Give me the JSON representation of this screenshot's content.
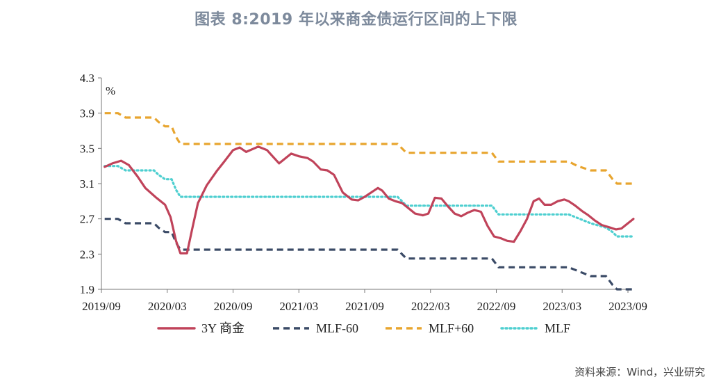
{
  "title": "图表 8:2019 年以来商金债运行区间的上下限",
  "source": "资料来源：Wind，兴业研究",
  "chart_data": {
    "type": "line",
    "unit_label": "%",
    "ylim": [
      1.9,
      4.3
    ],
    "yticks": [
      "4.3",
      "3.9",
      "3.5",
      "3.1",
      "2.7",
      "2.3",
      "1.9"
    ],
    "xlim": [
      0,
      48
    ],
    "xticks": [
      {
        "label": "2019/09",
        "pos": 0
      },
      {
        "label": "2020/03",
        "pos": 6
      },
      {
        "label": "2020/09",
        "pos": 12
      },
      {
        "label": "2021/03",
        "pos": 18
      },
      {
        "label": "2021/09",
        "pos": 24
      },
      {
        "label": "2022/03",
        "pos": 30
      },
      {
        "label": "2022/09",
        "pos": 36
      },
      {
        "label": "2023/03",
        "pos": 42
      },
      {
        "label": "2023/09",
        "pos": 48
      }
    ],
    "legend_position": "bottom",
    "series": [
      {
        "name": "3Y 商金",
        "color": "#c0435a",
        "style": "solid",
        "points": [
          [
            0.3,
            3.29
          ],
          [
            1,
            3.33
          ],
          [
            1.8,
            3.36
          ],
          [
            2.5,
            3.31
          ],
          [
            3.3,
            3.18
          ],
          [
            4,
            3.05
          ],
          [
            5,
            2.94
          ],
          [
            5.8,
            2.86
          ],
          [
            6.3,
            2.72
          ],
          [
            6.8,
            2.45
          ],
          [
            7.2,
            2.31
          ],
          [
            7.8,
            2.31
          ],
          [
            8.3,
            2.6
          ],
          [
            8.8,
            2.88
          ],
          [
            9.6,
            3.08
          ],
          [
            10.5,
            3.24
          ],
          [
            11.2,
            3.35
          ],
          [
            12,
            3.48
          ],
          [
            12.6,
            3.51
          ],
          [
            13.2,
            3.46
          ],
          [
            14.3,
            3.52
          ],
          [
            15.1,
            3.48
          ],
          [
            15.6,
            3.41
          ],
          [
            16.2,
            3.33
          ],
          [
            16.8,
            3.39
          ],
          [
            17.3,
            3.44
          ],
          [
            18,
            3.41
          ],
          [
            18.8,
            3.39
          ],
          [
            19.3,
            3.35
          ],
          [
            20,
            3.26
          ],
          [
            20.6,
            3.25
          ],
          [
            21.2,
            3.2
          ],
          [
            22,
            3.0
          ],
          [
            22.8,
            2.92
          ],
          [
            23.4,
            2.91
          ],
          [
            24,
            2.95
          ],
          [
            24.6,
            3.0
          ],
          [
            25.2,
            3.05
          ],
          [
            25.6,
            3.02
          ],
          [
            26.2,
            2.93
          ],
          [
            26.8,
            2.9
          ],
          [
            27.4,
            2.88
          ],
          [
            28,
            2.82
          ],
          [
            28.6,
            2.76
          ],
          [
            29.3,
            2.74
          ],
          [
            29.8,
            2.76
          ],
          [
            30.4,
            2.94
          ],
          [
            31,
            2.93
          ],
          [
            31.6,
            2.84
          ],
          [
            32.2,
            2.76
          ],
          [
            32.8,
            2.73
          ],
          [
            33.4,
            2.77
          ],
          [
            34,
            2.8
          ],
          [
            34.6,
            2.78
          ],
          [
            35.2,
            2.62
          ],
          [
            35.8,
            2.5
          ],
          [
            36.4,
            2.48
          ],
          [
            37,
            2.45
          ],
          [
            37.6,
            2.44
          ],
          [
            38.2,
            2.56
          ],
          [
            38.8,
            2.7
          ],
          [
            39.4,
            2.9
          ],
          [
            39.9,
            2.93
          ],
          [
            40.4,
            2.86
          ],
          [
            41,
            2.86
          ],
          [
            41.6,
            2.9
          ],
          [
            42.2,
            2.92
          ],
          [
            42.6,
            2.9
          ],
          [
            43.2,
            2.85
          ],
          [
            43.8,
            2.79
          ],
          [
            44.4,
            2.74
          ],
          [
            45,
            2.68
          ],
          [
            45.6,
            2.63
          ],
          [
            46.4,
            2.6
          ],
          [
            46.9,
            2.58
          ],
          [
            47.4,
            2.59
          ],
          [
            48,
            2.65
          ],
          [
            48.5,
            2.7
          ]
        ]
      },
      {
        "name": "MLF-60",
        "color": "#3a4a66",
        "style": "dashed",
        "points": [
          [
            0.3,
            2.7
          ],
          [
            1.5,
            2.7
          ],
          [
            2.2,
            2.65
          ],
          [
            4.8,
            2.65
          ],
          [
            5.2,
            2.6
          ],
          [
            5.8,
            2.55
          ],
          [
            6.4,
            2.55
          ],
          [
            6.8,
            2.43
          ],
          [
            7.2,
            2.35
          ],
          [
            24.5,
            2.35
          ],
          [
            25,
            2.35
          ],
          [
            27,
            2.35
          ],
          [
            27.8,
            2.25
          ],
          [
            33.5,
            2.25
          ],
          [
            34,
            2.25
          ],
          [
            35.6,
            2.25
          ],
          [
            36.2,
            2.15
          ],
          [
            42,
            2.15
          ],
          [
            42.6,
            2.15
          ],
          [
            44.6,
            2.05
          ],
          [
            46,
            2.05
          ],
          [
            46.6,
            1.95
          ],
          [
            47,
            1.9
          ],
          [
            48.5,
            1.9
          ]
        ]
      },
      {
        "name": "MLF+60",
        "color": "#e8a52f",
        "style": "dashed",
        "points": [
          [
            0.3,
            3.9
          ],
          [
            1.5,
            3.9
          ],
          [
            2.2,
            3.85
          ],
          [
            4.8,
            3.85
          ],
          [
            5.2,
            3.8
          ],
          [
            5.8,
            3.75
          ],
          [
            6.4,
            3.75
          ],
          [
            6.8,
            3.63
          ],
          [
            7.2,
            3.55
          ],
          [
            25,
            3.55
          ],
          [
            27,
            3.55
          ],
          [
            27.8,
            3.45
          ],
          [
            33.5,
            3.45
          ],
          [
            34,
            3.45
          ],
          [
            35.6,
            3.45
          ],
          [
            36.2,
            3.35
          ],
          [
            42,
            3.35
          ],
          [
            42.6,
            3.35
          ],
          [
            43.4,
            3.3
          ],
          [
            44.6,
            3.25
          ],
          [
            46,
            3.25
          ],
          [
            46.6,
            3.15
          ],
          [
            47,
            3.1
          ],
          [
            48.5,
            3.1
          ]
        ]
      },
      {
        "name": "MLF",
        "color": "#4ecfd0",
        "style": "dotted",
        "points": [
          [
            0.3,
            3.3
          ],
          [
            1.5,
            3.3
          ],
          [
            2.2,
            3.25
          ],
          [
            4.8,
            3.25
          ],
          [
            5.2,
            3.2
          ],
          [
            5.8,
            3.15
          ],
          [
            6.4,
            3.15
          ],
          [
            6.8,
            3.03
          ],
          [
            7.2,
            2.95
          ],
          [
            25,
            2.95
          ],
          [
            27,
            2.95
          ],
          [
            27.8,
            2.85
          ],
          [
            33.5,
            2.85
          ],
          [
            34,
            2.85
          ],
          [
            35.6,
            2.85
          ],
          [
            36.2,
            2.75
          ],
          [
            42,
            2.75
          ],
          [
            42.6,
            2.75
          ],
          [
            44.6,
            2.65
          ],
          [
            46,
            2.6
          ],
          [
            46.6,
            2.55
          ],
          [
            47,
            2.5
          ],
          [
            48.5,
            2.5
          ]
        ]
      }
    ]
  }
}
